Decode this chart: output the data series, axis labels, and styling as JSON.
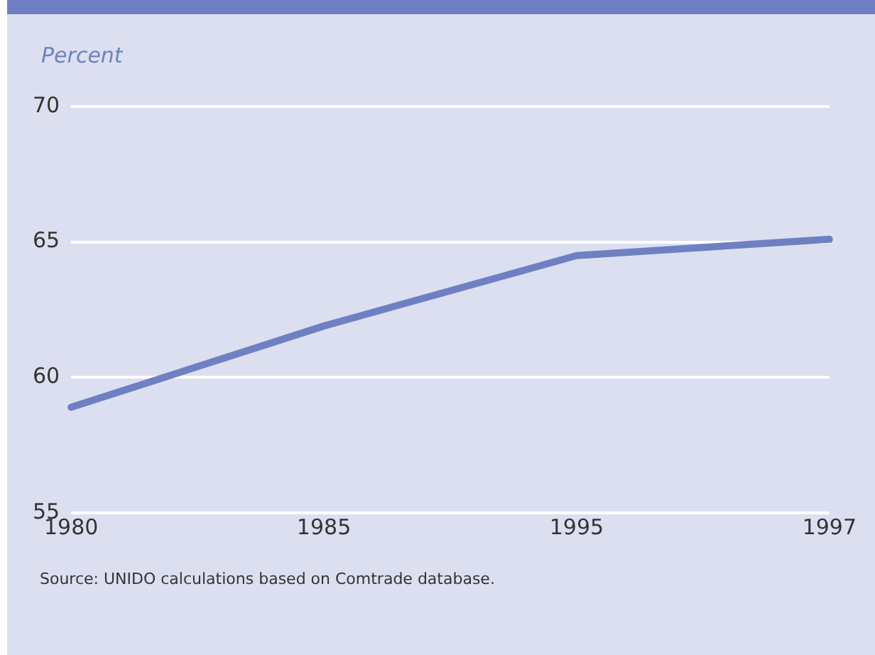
{
  "chart_data": {
    "type": "line",
    "ylabel": "Percent",
    "categories": [
      "1980",
      "1985",
      "1995",
      "1997"
    ],
    "series": [
      {
        "color": "#6f80c2",
        "values": [
          58.9,
          61.9,
          64.5,
          65.1
        ]
      }
    ],
    "ylim": [
      55,
      70
    ],
    "yticks": [
      55,
      60,
      65,
      70
    ],
    "grid": "y",
    "legend": false,
    "marker": "none",
    "line_style": "solid",
    "annotations": [
      "Source: UNIDO calculations based on Comtrade database."
    ]
  }
}
